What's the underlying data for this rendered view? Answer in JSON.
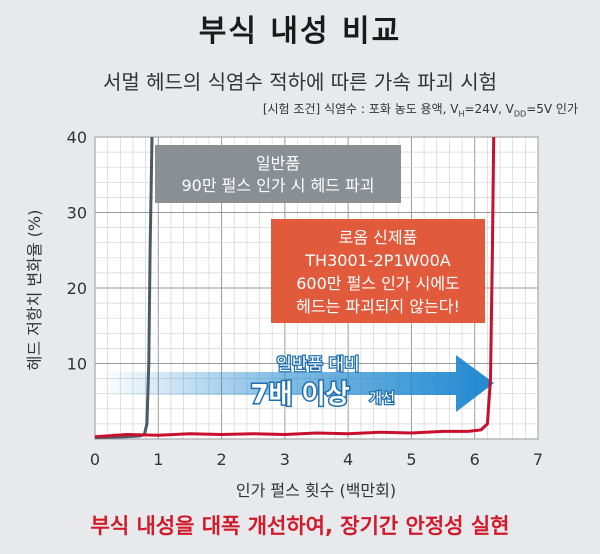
{
  "title": "부식 내성 비교",
  "subtitle": "서멀 헤드의 식염수 적하에 따른 가속 파괴 시험",
  "conditions": {
    "prefix": "[시험 조건] 식염수 : 포화 농도 용액, V",
    "vh_sub": "H",
    "mid": "=24V, V",
    "vdd_sub": "DD",
    "suffix": "=5V 인가"
  },
  "footer": "부식 내성을 대폭 개선하여, 장기간 안정성 실현",
  "colors": {
    "standard": "#4a5a66",
    "rohm": "#c8102e",
    "standard_box": "#8a8f94",
    "rohm_box": "#e25a3c",
    "arrow": "#1f88d0"
  },
  "chart_data": {
    "type": "line",
    "xlabel": "인가 펄스 횟수 (백만회)",
    "ylabel": "헤드 저항치 변화율 (%)",
    "xlim": [
      0,
      7
    ],
    "ylim": [
      0,
      40
    ],
    "xticks": [
      0,
      1,
      2,
      3,
      4,
      5,
      6,
      7
    ],
    "yticks": [
      10,
      20,
      30,
      40
    ],
    "grid": true,
    "series": [
      {
        "key": "standard",
        "x": [
          0,
          0.5,
          0.7,
          0.78,
          0.82,
          0.85,
          0.87,
          0.9
        ],
        "y": [
          0.2,
          0.3,
          0.4,
          0.6,
          2,
          10,
          25,
          40
        ]
      },
      {
        "key": "rohm",
        "x": [
          0,
          0.5,
          1.0,
          1.5,
          2.0,
          2.5,
          3.0,
          3.5,
          4.0,
          4.5,
          5.0,
          5.5,
          5.9,
          6.1,
          6.2,
          6.25,
          6.28,
          6.3
        ],
        "y": [
          0.3,
          0.6,
          0.5,
          0.7,
          0.6,
          0.7,
          0.6,
          0.8,
          0.7,
          0.9,
          0.8,
          1.0,
          1.0,
          1.2,
          2,
          8,
          25,
          40
        ]
      }
    ],
    "annotations": {
      "standard_label": [
        "일반품",
        "90만 펄스 인가 시 헤드 파괴"
      ],
      "rohm_label": [
        "로옴 신제품",
        "TH3001-2P1W00A",
        "600만 펄스 인가 시에도",
        "헤드는 파괴되지 않는다!"
      ],
      "arrow_line1": "일반품 대비",
      "arrow_line2_big": "7배 이상",
      "arrow_line2_small": "개선"
    }
  }
}
